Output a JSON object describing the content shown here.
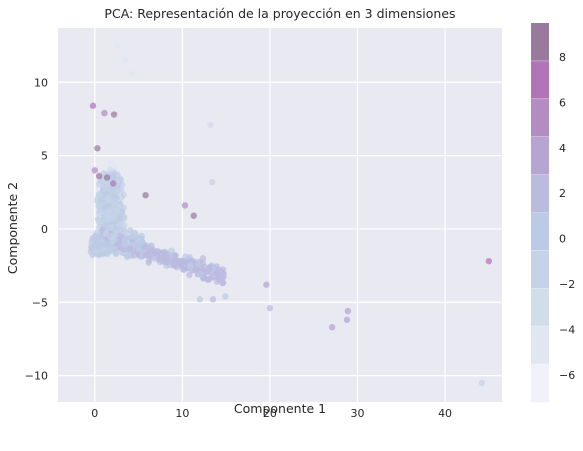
{
  "chart_data": {
    "type": "scatter",
    "title": "PCA: Representación de la proyección en 3 dimensiones",
    "xlabel": "Componente 1",
    "ylabel": "Componente 2",
    "xlim": [
      -4.2,
      46.5
    ],
    "ylim": [
      -11.8,
      13.7
    ],
    "xticks": [
      0,
      10,
      20,
      30,
      40
    ],
    "yticks": [
      -10,
      -5,
      0,
      5,
      10
    ],
    "grid": true,
    "color_scale": {
      "label": "",
      "range": [
        -7.2,
        9.5
      ],
      "ticks": [
        -6,
        -4,
        -2,
        0,
        2,
        4,
        6,
        8
      ],
      "tick_labels": [
        "−6",
        "−4",
        "−2",
        "0",
        "2",
        "4",
        "6",
        "8"
      ],
      "colors": [
        "#f1f2f9",
        "#e1e6f1",
        "#d2ddea",
        "#c5d2e8",
        "#bccbe5",
        "#bbbadf",
        "#b6a4d2",
        "#b48cc4",
        "#b274b8",
        "#9a7a9c"
      ],
      "background": "#e9e9f2"
    },
    "points": [
      {
        "x": 45,
        "y": -2.2,
        "c": 6.5
      },
      {
        "x": 44.2,
        "y": -10.5,
        "c": -1
      },
      {
        "x": 28.9,
        "y": -5.6,
        "c": 3
      },
      {
        "x": 28.8,
        "y": -6.2,
        "c": 3
      },
      {
        "x": 27.1,
        "y": -6.7,
        "c": 3
      },
      {
        "x": 20,
        "y": -5.4,
        "c": 2
      },
      {
        "x": 19.6,
        "y": -3.8,
        "c": 3.5
      },
      {
        "x": 14.9,
        "y": -4.6,
        "c": 1
      },
      {
        "x": 13.5,
        "y": -4.8,
        "c": 2
      },
      {
        "x": 14.6,
        "y": -3,
        "c": 2
      },
      {
        "x": 13.2,
        "y": 7.1,
        "c": -3
      },
      {
        "x": 13.4,
        "y": 3.2,
        "c": -2
      },
      {
        "x": 11.3,
        "y": 0.9,
        "c": 9
      },
      {
        "x": 5.8,
        "y": 2.3,
        "c": 8.5
      },
      {
        "x": 0.5,
        "y": 3.6,
        "c": 8
      },
      {
        "x": 1.4,
        "y": 3.5,
        "c": 8
      },
      {
        "x": 2.2,
        "y": 7.8,
        "c": 8
      },
      {
        "x": -0.2,
        "y": 8.4,
        "c": 7
      },
      {
        "x": 0.3,
        "y": 5.5,
        "c": 8
      },
      {
        "x": 1.1,
        "y": 7.9,
        "c": 6
      },
      {
        "x": 2.1,
        "y": 3.1,
        "c": 7
      },
      {
        "x": 0,
        "y": 4,
        "c": 6
      },
      {
        "x": 10.3,
        "y": 1.6,
        "c": 5
      },
      {
        "x": 12,
        "y": -4.8,
        "c": 1
      },
      {
        "x": 2.5,
        "y": 12.5,
        "c": -5
      },
      {
        "x": 3.5,
        "y": 11.5,
        "c": -5
      },
      {
        "x": 4.2,
        "y": 10.6,
        "c": -4
      }
    ]
  }
}
